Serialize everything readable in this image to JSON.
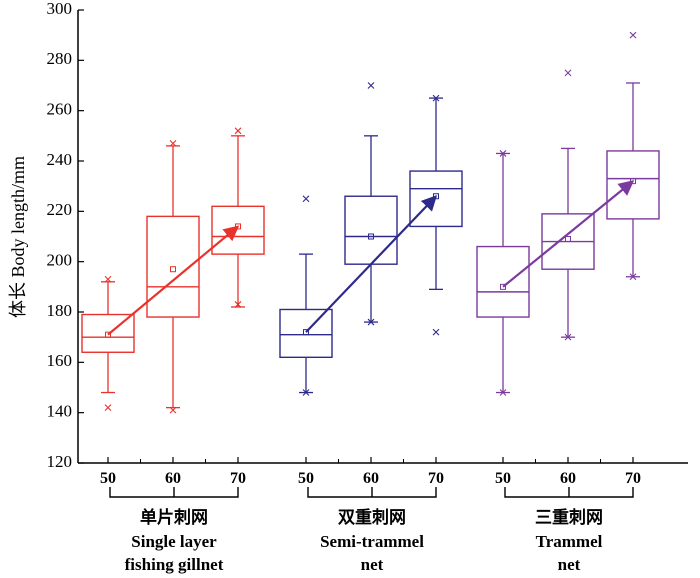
{
  "chart_data": {
    "type": "box",
    "ylabel": "体长 Body length/mm",
    "ylim": [
      120,
      300
    ],
    "yticks": [
      120,
      140,
      160,
      180,
      200,
      220,
      240,
      260,
      280,
      300
    ],
    "xtick_labels": [
      "50",
      "60",
      "70"
    ],
    "groups": [
      {
        "name_zh": "单片刺网",
        "name_en": [
          "Single layer",
          "fishing gillnet"
        ],
        "color": "#e8322c",
        "boxes": [
          {
            "mesh": "50",
            "q1": 164,
            "median": 170,
            "q3": 179,
            "whisker_low": 148,
            "whisker_high": 192,
            "mean": 171,
            "outliers_low": [
              142
            ],
            "outliers_high": [
              193
            ]
          },
          {
            "mesh": "60",
            "q1": 178,
            "median": 190,
            "q3": 218,
            "whisker_low": 142,
            "whisker_high": 246,
            "mean": 197,
            "outliers_low": [
              141
            ],
            "outliers_high": [
              247
            ]
          },
          {
            "mesh": "70",
            "q1": 203,
            "median": 210,
            "q3": 222,
            "whisker_low": 182,
            "whisker_high": 250,
            "mean": 214,
            "outliers_low": [
              183
            ],
            "outliers_high": [
              252
            ]
          }
        ],
        "trend": {
          "from": 171,
          "to": 214
        }
      },
      {
        "name_zh": "双重刺网",
        "name_en": [
          "Semi-trammel",
          "net"
        ],
        "color": "#2e2a8c",
        "boxes": [
          {
            "mesh": "50",
            "q1": 162,
            "median": 171,
            "q3": 181,
            "whisker_low": 148,
            "whisker_high": 203,
            "mean": 172,
            "outliers_low": [
              148
            ],
            "outliers_high": [
              225
            ]
          },
          {
            "mesh": "60",
            "q1": 199,
            "median": 210,
            "q3": 226,
            "whisker_low": 176,
            "whisker_high": 250,
            "mean": 210,
            "outliers_low": [
              176
            ],
            "outliers_high": [
              270
            ]
          },
          {
            "mesh": "70",
            "q1": 214,
            "median": 229,
            "q3": 236,
            "whisker_low": 189,
            "whisker_high": 265,
            "mean": 226,
            "outliers_low": [
              172
            ],
            "outliers_high": [
              265
            ]
          }
        ],
        "trend": {
          "from": 172,
          "to": 226
        }
      },
      {
        "name_zh": "三重刺网",
        "name_en": [
          "Trammel",
          "net"
        ],
        "color": "#7b3a9e",
        "boxes": [
          {
            "mesh": "50",
            "q1": 178,
            "median": 188,
            "q3": 206,
            "whisker_low": 148,
            "whisker_high": 243,
            "mean": 190,
            "outliers_low": [
              148
            ],
            "outliers_high": [
              243
            ]
          },
          {
            "mesh": "60",
            "q1": 197,
            "median": 208,
            "q3": 219,
            "whisker_low": 170,
            "whisker_high": 245,
            "mean": 209,
            "outliers_low": [
              170
            ],
            "outliers_high": [
              275
            ]
          },
          {
            "mesh": "70",
            "q1": 217,
            "median": 233,
            "q3": 244,
            "whisker_low": 194,
            "whisker_high": 271,
            "mean": 232,
            "outliers_low": [
              194
            ],
            "outliers_high": [
              290
            ]
          }
        ],
        "trend": {
          "from": 190,
          "to": 232
        }
      }
    ]
  }
}
